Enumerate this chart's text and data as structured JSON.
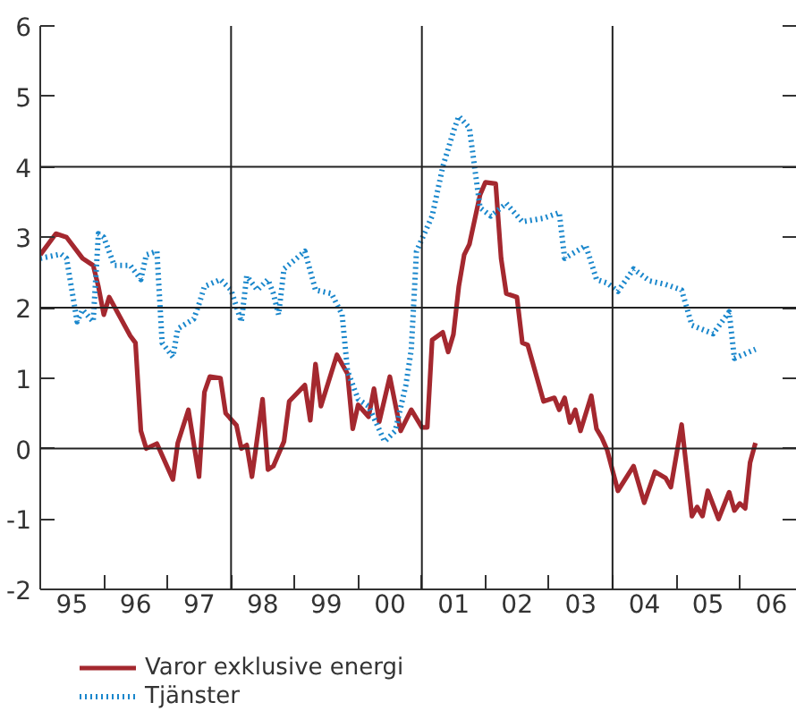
{
  "chart_data": {
    "type": "line",
    "xlim": [
      "1995-01-01",
      "2006-11-25"
    ],
    "ylim": [
      -2,
      6
    ],
    "xticks": [
      {
        "value": "1995",
        "label": null
      },
      {
        "value": "1996",
        "label": null
      },
      {
        "value": "1997",
        "label": null
      },
      {
        "value": "1998",
        "label": null
      },
      {
        "value": "1999",
        "label": null
      },
      {
        "value": "2000",
        "label": null
      },
      {
        "value": "2001",
        "label": null
      },
      {
        "value": "2002",
        "label": null
      },
      {
        "value": "2003",
        "label": null
      },
      {
        "value": "2004",
        "label": null
      },
      {
        "value": "2005",
        "label": null
      },
      {
        "value": "2006",
        "label": null
      },
      {
        "value": "1995-07-02",
        "label": "95"
      },
      {
        "value": "1996-07-02",
        "label": "96"
      },
      {
        "value": "1997-07-02",
        "label": "97"
      },
      {
        "value": "1998-07-02",
        "label": "98"
      },
      {
        "value": "1999-07-02",
        "label": "99"
      },
      {
        "value": "2000-07-02",
        "label": "00"
      },
      {
        "value": "2001-07-02",
        "label": "01"
      },
      {
        "value": "2002-07-02",
        "label": "02"
      },
      {
        "value": "2003-07-02",
        "label": "03"
      },
      {
        "value": "2004-07-02",
        "label": "04"
      },
      {
        "value": "2005-07-02",
        "label": "05"
      },
      {
        "value": "2006-07-02",
        "label": "06"
      }
    ],
    "yticks": [
      -2,
      -1,
      0,
      1,
      2,
      3,
      4,
      5,
      6
    ],
    "grid": false,
    "legend": "bottom",
    "ref_lines": [
      {
        "axis": "y",
        "value": 0
      },
      {
        "axis": "y",
        "value": 2
      },
      {
        "axis": "y",
        "value": 4
      },
      {
        "axis": "x",
        "value": "1998"
      },
      {
        "axis": "x",
        "value": "2001"
      },
      {
        "axis": "x",
        "value": "2004"
      }
    ],
    "series": [
      {
        "name": "Varor exklusive energi",
        "color": "#a4282f",
        "line_style": "solid",
        "x": [
          "1995-01",
          "1995-04",
          "1995-06",
          "1995-09",
          "1995-11",
          "1995-12",
          "1996-01",
          "1996-02",
          "1996-06",
          "1996-07",
          "1996-08",
          "1996-09",
          "1996-11",
          "1997-02",
          "1997-03",
          "1997-05",
          "1997-07",
          "1997-08",
          "1997-09",
          "1997-11",
          "1997-12",
          "1998-02",
          "1998-03",
          "1998-04",
          "1998-05",
          "1998-07",
          "1998-08",
          "1998-09",
          "1998-11",
          "1998-12",
          "1999-03",
          "1999-04",
          "1999-05",
          "1999-06",
          "1999-09",
          "1999-11",
          "1999-12",
          "2000-01",
          "2000-03",
          "2000-04",
          "2000-05",
          "2000-07",
          "2000-09",
          "2000-11",
          "2001-01",
          "2001-02",
          "2001-03",
          "2001-05",
          "2001-06",
          "2001-07",
          "2001-08",
          "2001-09",
          "2001-10",
          "2001-12",
          "2002-01",
          "2002-03",
          "2002-04",
          "2002-05",
          "2002-07",
          "2002-08",
          "2002-09",
          "2002-12",
          "2003-02",
          "2003-03",
          "2003-04",
          "2003-05",
          "2003-06",
          "2003-07",
          "2003-09",
          "2003-10",
          "2003-11",
          "2003-12",
          "2004-02",
          "2004-05",
          "2004-07",
          "2004-09",
          "2004-11",
          "2004-12",
          "2005-02",
          "2005-04",
          "2005-05",
          "2005-06",
          "2005-07",
          "2005-09",
          "2005-11",
          "2005-12",
          "2006-01",
          "2006-02",
          "2006-03",
          "2006-04"
        ],
        "values": [
          2.75,
          3.05,
          3.0,
          2.7,
          2.6,
          2.3,
          1.9,
          2.15,
          1.6,
          1.5,
          0.25,
          0.0,
          0.07,
          -0.44,
          0.08,
          0.55,
          -0.4,
          0.8,
          1.02,
          1.0,
          0.5,
          0.33,
          0.0,
          0.05,
          -0.4,
          0.7,
          -0.3,
          -0.25,
          0.1,
          0.67,
          0.9,
          0.4,
          1.2,
          0.6,
          1.33,
          1.06,
          0.28,
          0.62,
          0.45,
          0.85,
          0.38,
          1.02,
          0.25,
          0.55,
          0.3,
          0.3,
          1.54,
          1.65,
          1.37,
          1.62,
          2.3,
          2.75,
          2.9,
          3.6,
          3.78,
          3.76,
          2.7,
          2.2,
          2.15,
          1.5,
          1.47,
          0.67,
          0.72,
          0.55,
          0.72,
          0.37,
          0.55,
          0.25,
          0.75,
          0.28,
          0.15,
          -0.02,
          -0.6,
          -0.25,
          -0.77,
          -0.33,
          -0.42,
          -0.55,
          0.34,
          -0.96,
          -0.83,
          -0.96,
          -0.6,
          -1.0,
          -0.62,
          -0.88,
          -0.78,
          -0.85,
          -0.2,
          0.08
        ]
      },
      {
        "name": "Tjänster",
        "color": "#1a87cc",
        "line_style": "dotted",
        "x": [
          "1995-01",
          "1995-05",
          "1995-06",
          "1995-08",
          "1995-09",
          "1995-11",
          "1995-12",
          "1996-01",
          "1996-03",
          "1996-06",
          "1996-08",
          "1996-09",
          "1996-11",
          "1996-12",
          "1997-02",
          "1997-03",
          "1997-06",
          "1997-07",
          "1997-08",
          "1997-11",
          "1998-01",
          "1998-03",
          "1998-04",
          "1998-06",
          "1998-08",
          "1998-09",
          "1998-10",
          "1998-11",
          "1999-03",
          "1999-05",
          "1999-08",
          "1999-10",
          "1999-11",
          "2000-01",
          "2000-03",
          "2000-06",
          "2000-08",
          "2000-10",
          "2000-11",
          "2000-12",
          "2001-03",
          "2001-05",
          "2001-07",
          "2001-08",
          "2001-10",
          "2001-12",
          "2002-02",
          "2002-05",
          "2002-08",
          "2002-12",
          "2003-03",
          "2003-04",
          "2003-08",
          "2003-10",
          "2003-12",
          "2004-02",
          "2004-05",
          "2004-08",
          "2004-11",
          "2005-02",
          "2005-04",
          "2005-08",
          "2005-11",
          "2005-12",
          "2006-04"
        ],
        "values": [
          2.7,
          2.76,
          2.7,
          1.8,
          1.97,
          1.8,
          3.05,
          3.0,
          2.6,
          2.6,
          2.4,
          2.75,
          2.8,
          1.5,
          1.3,
          1.7,
          1.84,
          2.05,
          2.3,
          2.4,
          2.25,
          1.8,
          2.45,
          2.25,
          2.4,
          2.2,
          1.9,
          2.55,
          2.8,
          2.25,
          2.2,
          1.9,
          1.1,
          0.7,
          0.6,
          0.1,
          0.25,
          0.9,
          1.4,
          2.8,
          3.3,
          4.0,
          4.5,
          4.72,
          4.55,
          3.42,
          3.3,
          3.48,
          3.22,
          3.27,
          3.35,
          2.7,
          2.88,
          2.4,
          2.35,
          2.23,
          2.55,
          2.38,
          2.33,
          2.25,
          1.75,
          1.63,
          1.94,
          1.28,
          1.41
        ]
      }
    ]
  }
}
